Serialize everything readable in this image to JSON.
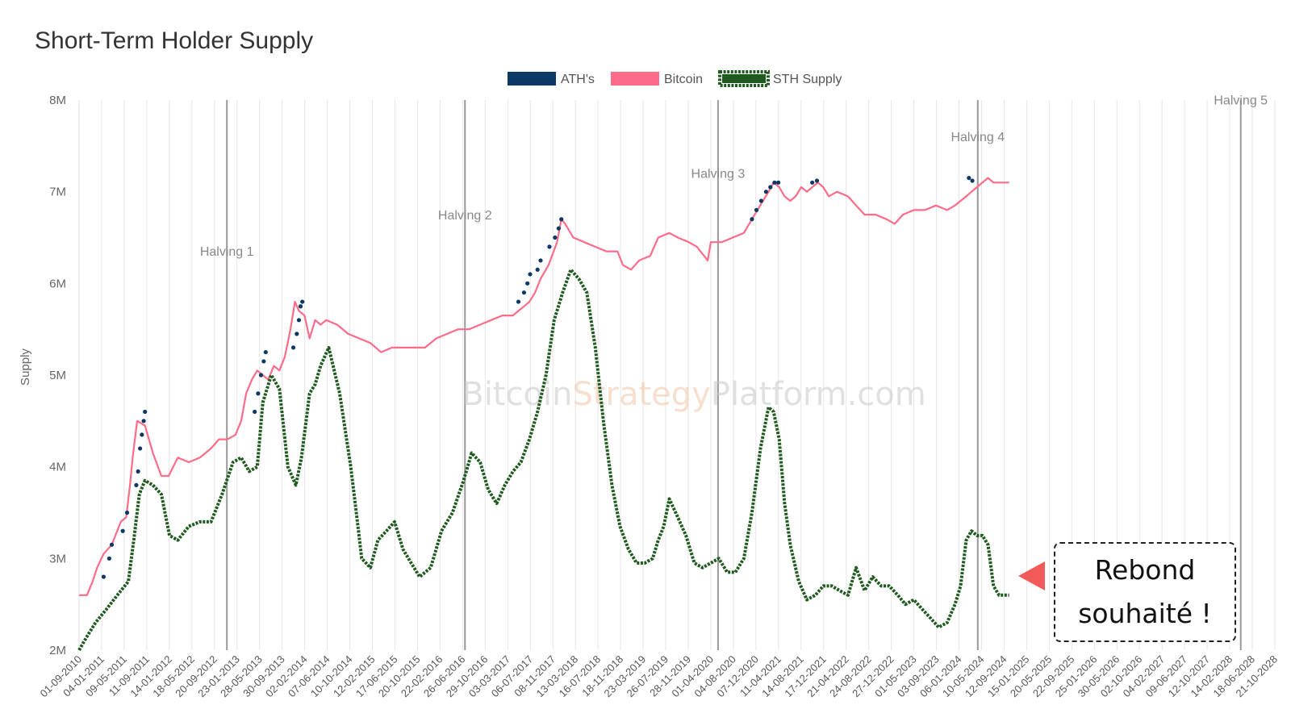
{
  "chart_data": {
    "type": "line",
    "title": "Short-Term Holder Supply",
    "ylabel": "Supply",
    "xlabel": "",
    "ylim": [
      2000000,
      8000000
    ],
    "y_ticks": [
      "2M",
      "3M",
      "4M",
      "5M",
      "6M",
      "7M",
      "8M"
    ],
    "x_range": [
      "2010-09-01",
      "2028-10-21"
    ],
    "x_tick_labels": [
      "01-09-2010",
      "04-01-2011",
      "09-05-2011",
      "11-09-2011",
      "14-01-2012",
      "18-05-2012",
      "20-09-2012",
      "23-01-2013",
      "28-05-2013",
      "30-09-2013",
      "02-02-2014",
      "07-06-2014",
      "10-10-2014",
      "12-02-2015",
      "17-06-2015",
      "20-10-2015",
      "22-02-2016",
      "26-06-2016",
      "29-10-2016",
      "03-03-2017",
      "06-07-2017",
      "08-11-2017",
      "13-03-2018",
      "16-07-2018",
      "18-11-2018",
      "23-03-2019",
      "26-07-2019",
      "28-11-2019",
      "01-04-2020",
      "04-08-2020",
      "07-12-2020",
      "11-04-2021",
      "14-08-2021",
      "17-12-2021",
      "21-04-2022",
      "24-08-2022",
      "27-12-2022",
      "01-05-2023",
      "03-09-2023",
      "06-01-2024",
      "10-05-2024",
      "12-09-2024",
      "15-01-2025",
      "20-05-2025",
      "22-09-2025",
      "25-01-2026",
      "30-05-2026",
      "02-10-2026",
      "04-02-2027",
      "09-06-2027",
      "12-10-2027",
      "14-02-2028",
      "18-06-2028",
      "21-10-2028"
    ],
    "legend": [
      "ATH's",
      "Bitcoin",
      "STH Supply"
    ],
    "legend_position": "top-center",
    "grid": true,
    "colors": {
      "ath": "#0d3764",
      "bitcoin": "#ff6b88",
      "sth": "#1f5a1f"
    },
    "series": [
      {
        "name": "Bitcoin",
        "x": [
          "2010-09-01",
          "2010-10-15",
          "2010-11-15",
          "2010-12-10",
          "2011-01-15",
          "2011-03-01",
          "2011-04-20",
          "2011-05-20",
          "2011-06-10",
          "2011-06-25",
          "2011-07-20",
          "2011-09-01",
          "2011-10-15",
          "2011-12-01",
          "2012-01-10",
          "2012-03-01",
          "2012-05-01",
          "2012-07-01",
          "2012-09-01",
          "2012-10-15",
          "2012-12-01",
          "2013-01-15",
          "2013-02-15",
          "2013-03-15",
          "2013-04-15",
          "2013-05-15",
          "2013-06-15",
          "2013-07-15",
          "2013-08-15",
          "2013-09-15",
          "2013-10-15",
          "2013-11-15",
          "2013-12-10",
          "2014-01-01",
          "2014-02-01",
          "2014-03-01",
          "2014-04-01",
          "2014-05-01",
          "2014-06-01",
          "2014-08-01",
          "2014-10-01",
          "2014-12-01",
          "2015-02-01",
          "2015-04-01",
          "2015-06-01",
          "2015-08-01",
          "2015-10-01",
          "2015-12-01",
          "2016-02-01",
          "2016-04-01",
          "2016-06-01",
          "2016-08-01",
          "2016-10-01",
          "2016-12-01",
          "2017-02-01",
          "2017-04-01",
          "2017-05-01",
          "2017-06-01",
          "2017-07-01",
          "2017-08-01",
          "2017-09-01",
          "2017-10-15",
          "2017-12-01",
          "2017-12-25",
          "2018-01-15",
          "2018-03-01",
          "2018-05-01",
          "2018-07-01",
          "2018-09-01",
          "2018-11-01",
          "2018-12-01",
          "2019-01-15",
          "2019-03-01",
          "2019-05-01",
          "2019-06-15",
          "2019-08-15",
          "2019-10-01",
          "2019-12-01",
          "2020-01-15",
          "2020-03-15",
          "2020-04-01",
          "2020-06-01",
          "2020-08-01",
          "2020-10-01",
          "2020-11-15",
          "2020-12-15",
          "2021-01-15",
          "2021-02-15",
          "2021-03-15",
          "2021-04-15",
          "2021-05-15",
          "2021-06-15",
          "2021-07-15",
          "2021-08-15",
          "2021-09-15",
          "2021-10-15",
          "2021-11-15",
          "2021-12-15",
          "2022-01-15",
          "2022-03-01",
          "2022-05-01",
          "2022-06-15",
          "2022-08-01",
          "2022-10-01",
          "2022-12-01",
          "2023-01-15",
          "2023-03-01",
          "2023-05-01",
          "2023-07-01",
          "2023-09-01",
          "2023-11-01",
          "2023-12-15",
          "2024-01-15",
          "2024-02-15",
          "2024-03-15",
          "2024-04-15",
          "2024-05-15",
          "2024-06-15",
          "2024-07-15",
          "2024-08-15",
          "2024-09-15",
          "2024-10-10"
        ],
        "values": [
          2600000,
          2600000,
          2750000,
          2900000,
          3050000,
          3150000,
          3400000,
          3450000,
          3800000,
          4100000,
          4500000,
          4450000,
          4150000,
          3900000,
          3900000,
          4100000,
          4050000,
          4100000,
          4200000,
          4300000,
          4300000,
          4350000,
          4500000,
          4800000,
          4950000,
          5050000,
          5000000,
          4950000,
          5100000,
          5050000,
          5200000,
          5500000,
          5800000,
          5700000,
          5650000,
          5400000,
          5600000,
          5550000,
          5600000,
          5550000,
          5450000,
          5400000,
          5350000,
          5250000,
          5300000,
          5300000,
          5300000,
          5300000,
          5400000,
          5450000,
          5500000,
          5500000,
          5550000,
          5600000,
          5650000,
          5650000,
          5700000,
          5750000,
          5800000,
          5900000,
          6050000,
          6200000,
          6450000,
          6700000,
          6650000,
          6500000,
          6450000,
          6400000,
          6350000,
          6350000,
          6200000,
          6150000,
          6250000,
          6300000,
          6500000,
          6550000,
          6500000,
          6450000,
          6400000,
          6250000,
          6450000,
          6450000,
          6500000,
          6550000,
          6700000,
          6800000,
          6900000,
          7000000,
          7100000,
          7050000,
          6950000,
          6900000,
          6950000,
          7050000,
          7000000,
          7050000,
          7100000,
          7050000,
          6950000,
          7000000,
          6950000,
          6850000,
          6750000,
          6750000,
          6700000,
          6650000,
          6750000,
          6800000,
          6800000,
          6850000,
          6800000,
          6850000,
          6900000,
          6950000,
          7000000,
          7050000,
          7100000,
          7150000,
          7100000,
          7100000,
          7100000,
          7100000
        ]
      },
      {
        "name": "STH Supply",
        "x": [
          "2010-09-01",
          "2010-10-15",
          "2010-12-01",
          "2011-02-01",
          "2011-04-01",
          "2011-06-01",
          "2011-07-01",
          "2011-08-01",
          "2011-09-01",
          "2011-10-15",
          "2011-12-01",
          "2012-01-15",
          "2012-03-01",
          "2012-05-01",
          "2012-07-01",
          "2012-09-01",
          "2012-11-01",
          "2013-01-01",
          "2013-02-15",
          "2013-04-01",
          "2013-05-15",
          "2013-06-15",
          "2013-08-01",
          "2013-09-15",
          "2013-11-01",
          "2013-12-15",
          "2014-01-15",
          "2014-03-01",
          "2014-04-01",
          "2014-05-01",
          "2014-06-15",
          "2014-08-15",
          "2014-10-15",
          "2014-11-15",
          "2014-12-15",
          "2015-02-01",
          "2015-03-15",
          "2015-05-01",
          "2015-06-15",
          "2015-08-01",
          "2015-09-15",
          "2015-11-01",
          "2016-01-01",
          "2016-03-01",
          "2016-05-01",
          "2016-07-01",
          "2016-08-15",
          "2016-10-01",
          "2016-11-15",
          "2017-01-01",
          "2017-02-15",
          "2017-04-01",
          "2017-05-15",
          "2017-07-01",
          "2017-08-15",
          "2017-10-01",
          "2017-11-15",
          "2018-01-01",
          "2018-02-15",
          "2018-04-01",
          "2018-05-15",
          "2018-07-01",
          "2018-08-15",
          "2018-10-01",
          "2018-11-15",
          "2019-01-01",
          "2019-02-15",
          "2019-04-01",
          "2019-05-15",
          "2019-06-15",
          "2019-07-15",
          "2019-08-15",
          "2019-10-01",
          "2019-11-15",
          "2020-01-01",
          "2020-02-15",
          "2020-04-01",
          "2020-05-15",
          "2020-07-01",
          "2020-08-15",
          "2020-10-01",
          "2020-11-15",
          "2021-01-01",
          "2021-02-15",
          "2021-03-15",
          "2021-04-15",
          "2021-05-15",
          "2021-06-15",
          "2021-08-01",
          "2021-09-15",
          "2021-11-01",
          "2021-12-15",
          "2022-02-01",
          "2022-03-15",
          "2022-05-01",
          "2022-06-15",
          "2022-08-01",
          "2022-09-15",
          "2022-11-01",
          "2022-12-15",
          "2023-02-01",
          "2023-03-15",
          "2023-05-01",
          "2023-06-15",
          "2023-08-01",
          "2023-09-15",
          "2023-11-01",
          "2023-12-15",
          "2024-01-15",
          "2024-02-15",
          "2024-03-15",
          "2024-04-15",
          "2024-05-15",
          "2024-06-15",
          "2024-07-15",
          "2024-08-15",
          "2024-09-15",
          "2024-10-10"
        ],
        "values": [
          2000000,
          2150000,
          2300000,
          2450000,
          2600000,
          2750000,
          3200000,
          3700000,
          3850000,
          3800000,
          3700000,
          3250000,
          3200000,
          3350000,
          3400000,
          3400000,
          3700000,
          4050000,
          4100000,
          3950000,
          4000000,
          4700000,
          5000000,
          4850000,
          4000000,
          3800000,
          4100000,
          4800000,
          4900000,
          5100000,
          5300000,
          4800000,
          4000000,
          3500000,
          3000000,
          2900000,
          3200000,
          3300000,
          3400000,
          3100000,
          2950000,
          2800000,
          2900000,
          3300000,
          3500000,
          3850000,
          4150000,
          4050000,
          3750000,
          3600000,
          3800000,
          3950000,
          4050000,
          4300000,
          4600000,
          5000000,
          5600000,
          5900000,
          6150000,
          6050000,
          5900000,
          5300000,
          4500000,
          3800000,
          3350000,
          3100000,
          2950000,
          2950000,
          3000000,
          3200000,
          3350000,
          3650000,
          3450000,
          3250000,
          2950000,
          2900000,
          2950000,
          3000000,
          2850000,
          2850000,
          3000000,
          3500000,
          4200000,
          4650000,
          4600000,
          4300000,
          3600000,
          3150000,
          2750000,
          2550000,
          2600000,
          2700000,
          2700000,
          2650000,
          2600000,
          2900000,
          2650000,
          2800000,
          2700000,
          2700000,
          2600000,
          2500000,
          2550000,
          2450000,
          2350000,
          2250000,
          2300000,
          2500000,
          2700000,
          3200000,
          3300000,
          3250000,
          3250000,
          3150000,
          2700000,
          2600000,
          2600000,
          2600000
        ]
      },
      {
        "name": "ATH's",
        "points": [
          {
            "x": "2011-01-15",
            "y": 2800000
          },
          {
            "x": "2011-02-15",
            "y": 3000000
          },
          {
            "x": "2011-03-01",
            "y": 3150000
          },
          {
            "x": "2011-05-01",
            "y": 3300000
          },
          {
            "x": "2011-05-25",
            "y": 3500000
          },
          {
            "x": "2011-07-15",
            "y": 3800000
          },
          {
            "x": "2011-07-25",
            "y": 3950000
          },
          {
            "x": "2011-08-05",
            "y": 4200000
          },
          {
            "x": "2011-08-15",
            "y": 4350000
          },
          {
            "x": "2011-08-25",
            "y": 4500000
          },
          {
            "x": "2011-09-01",
            "y": 4600000
          },
          {
            "x": "2013-05-01",
            "y": 4600000
          },
          {
            "x": "2013-05-20",
            "y": 4800000
          },
          {
            "x": "2013-06-05",
            "y": 5000000
          },
          {
            "x": "2013-06-20",
            "y": 5150000
          },
          {
            "x": "2013-07-01",
            "y": 5250000
          },
          {
            "x": "2013-12-01",
            "y": 5300000
          },
          {
            "x": "2013-12-20",
            "y": 5450000
          },
          {
            "x": "2014-01-01",
            "y": 5600000
          },
          {
            "x": "2014-01-10",
            "y": 5750000
          },
          {
            "x": "2014-01-20",
            "y": 5800000
          },
          {
            "x": "2017-05-01",
            "y": 5800000
          },
          {
            "x": "2017-06-01",
            "y": 5900000
          },
          {
            "x": "2017-06-20",
            "y": 6000000
          },
          {
            "x": "2017-07-05",
            "y": 6100000
          },
          {
            "x": "2017-08-15",
            "y": 6150000
          },
          {
            "x": "2017-09-01",
            "y": 6250000
          },
          {
            "x": "2017-10-20",
            "y": 6400000
          },
          {
            "x": "2017-11-20",
            "y": 6500000
          },
          {
            "x": "2017-12-10",
            "y": 6600000
          },
          {
            "x": "2017-12-25",
            "y": 6700000
          },
          {
            "x": "2020-11-15",
            "y": 6700000
          },
          {
            "x": "2020-12-10",
            "y": 6800000
          },
          {
            "x": "2021-01-05",
            "y": 6900000
          },
          {
            "x": "2021-02-01",
            "y": 7000000
          },
          {
            "x": "2021-02-25",
            "y": 7050000
          },
          {
            "x": "2021-03-20",
            "y": 7100000
          },
          {
            "x": "2021-04-10",
            "y": 7100000
          },
          {
            "x": "2021-10-15",
            "y": 7100000
          },
          {
            "x": "2021-11-10",
            "y": 7120000
          },
          {
            "x": "2024-03-01",
            "y": 7150000
          },
          {
            "x": "2024-03-20",
            "y": 7120000
          }
        ]
      }
    ],
    "halvings": [
      {
        "label": "Halving 1",
        "x": "2012-11-28",
        "label_y": 6300000
      },
      {
        "label": "Halving 2",
        "x": "2016-07-09",
        "label_y": 6700000
      },
      {
        "label": "Halving 3",
        "x": "2020-05-11",
        "label_y": 7150000
      },
      {
        "label": "Halving 4",
        "x": "2024-04-19",
        "label_y": 7550000
      },
      {
        "label": "Halving 5",
        "x": "2028-04-15",
        "label_y": 7950000
      }
    ]
  },
  "watermark": {
    "part1": "Bitcoin",
    "part2": "Strategy",
    "part3": "Platform.com"
  },
  "annotation": {
    "line1": "Rebond",
    "line2": "souhaité !"
  }
}
